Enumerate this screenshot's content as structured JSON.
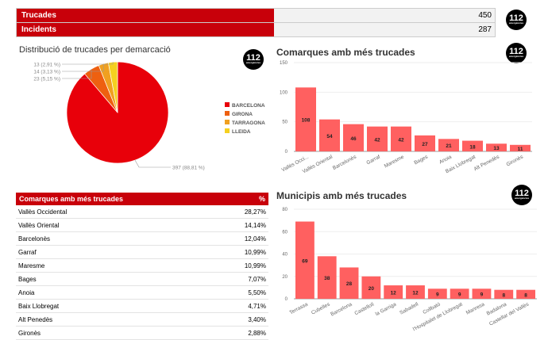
{
  "kpis": [
    {
      "label": "Trucades",
      "value": "450"
    },
    {
      "label": "Incidents",
      "value": "287"
    }
  ],
  "logo": {
    "text": "112",
    "sub": "emergències"
  },
  "colors": {
    "brand": "#c8000a",
    "bar": "#ff6060"
  },
  "pie": {
    "title": "Distribució de trucades per demarcació",
    "chart_data": {
      "type": "pie",
      "slices": [
        {
          "name": "BARCELONA",
          "value": 397,
          "label": "397 (88,81 %)",
          "color": "#e8000a"
        },
        {
          "name": "GIRONA",
          "value": 23,
          "label": "23 (5,15 %)",
          "color": "#ee6010"
        },
        {
          "name": "TARRAGONA",
          "value": 14,
          "label": "14 (3,13 %)",
          "color": "#f0a020"
        },
        {
          "name": "LLEIDA",
          "value": 13,
          "label": "13 (2,91 %)",
          "color": "#f5d020"
        }
      ],
      "legend": "right"
    }
  },
  "table": {
    "headers": [
      "Comarques amb més trucades",
      "%"
    ],
    "rows": [
      [
        "Vallès Occidental",
        "28,27%"
      ],
      [
        "Vallès Oriental",
        "14,14%"
      ],
      [
        "Barcelonès",
        "12,04%"
      ],
      [
        "Garraf",
        "10,99%"
      ],
      [
        "Maresme",
        "10,99%"
      ],
      [
        "Bages",
        "7,07%"
      ],
      [
        "Anoia",
        "5,50%"
      ],
      [
        "Baix Llobregat",
        "4,71%"
      ],
      [
        "Alt Penedès",
        "3,40%"
      ],
      [
        "Gironès",
        "2,88%"
      ]
    ]
  },
  "chart_data": [
    {
      "type": "bar",
      "title": "Comarques amb més trucades",
      "categories": [
        "Vallès Occi...",
        "Vallès Oriental",
        "Barcelonès",
        "Garraf",
        "Maresme",
        "Bages",
        "Anoia",
        "Baix Llobregat",
        "Alt Penedès",
        "Gironès"
      ],
      "values": [
        108,
        54,
        46,
        42,
        42,
        27,
        21,
        18,
        13,
        11
      ],
      "ylim": [
        0,
        150
      ],
      "yticks": [
        0,
        50,
        100,
        150
      ],
      "grid": true
    },
    {
      "type": "bar",
      "title": "Municipis amb més trucades",
      "categories": [
        "Terrassa",
        "Cubelles",
        "Barcelona",
        "Castellolí",
        "la Garriga",
        "Sabadell",
        "Collbató",
        "l'Hospitalet de Llobregat",
        "Manresa",
        "Badalona",
        "Castellar del Vallès"
      ],
      "values": [
        69,
        38,
        28,
        20,
        12,
        12,
        9,
        9,
        9,
        8,
        8
      ],
      "ylim": [
        0,
        80
      ],
      "yticks": [
        0,
        20,
        40,
        60,
        80
      ],
      "grid": true
    }
  ]
}
